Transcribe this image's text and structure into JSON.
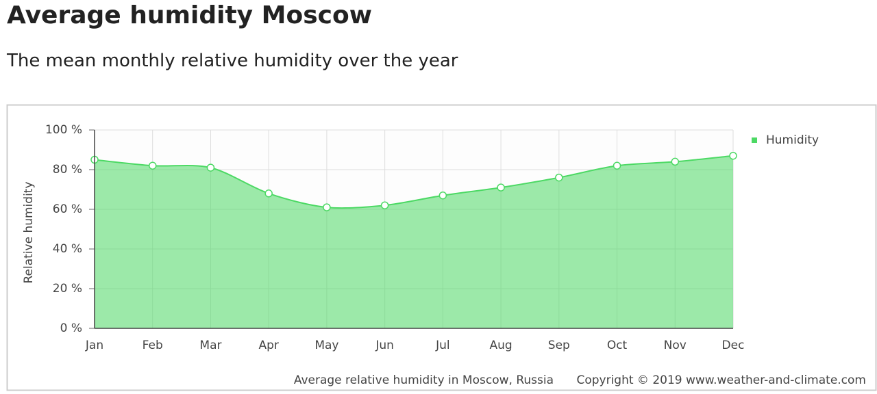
{
  "chart_data": {
    "type": "area",
    "title": "Average humidity Moscow",
    "subtitle": "The mean monthly relative humidity over the year",
    "y_label": "Relative humidity",
    "caption": "Average relative humidity in Moscow, Russia",
    "copyright": "Copyright © 2019 www.weather-and-climate.com",
    "categories": [
      "Jan",
      "Feb",
      "Mar",
      "Apr",
      "May",
      "Jun",
      "Jul",
      "Aug",
      "Sep",
      "Oct",
      "Nov",
      "Dec"
    ],
    "series": [
      {
        "name": "Humidity",
        "color": "#4cd964",
        "values": [
          85,
          82,
          81,
          68,
          61,
          62,
          67,
          71,
          76,
          82,
          84,
          87
        ]
      }
    ],
    "ylim": [
      0,
      100
    ],
    "yticks": [
      {
        "value": 0,
        "label": "0 %"
      },
      {
        "value": 20,
        "label": "20 %"
      },
      {
        "value": 40,
        "label": "40 %"
      },
      {
        "value": 60,
        "label": "60 %"
      },
      {
        "value": 80,
        "label": "80 %"
      },
      {
        "value": 100,
        "label": "100 %"
      }
    ],
    "grid": true,
    "legend": "top-right"
  }
}
